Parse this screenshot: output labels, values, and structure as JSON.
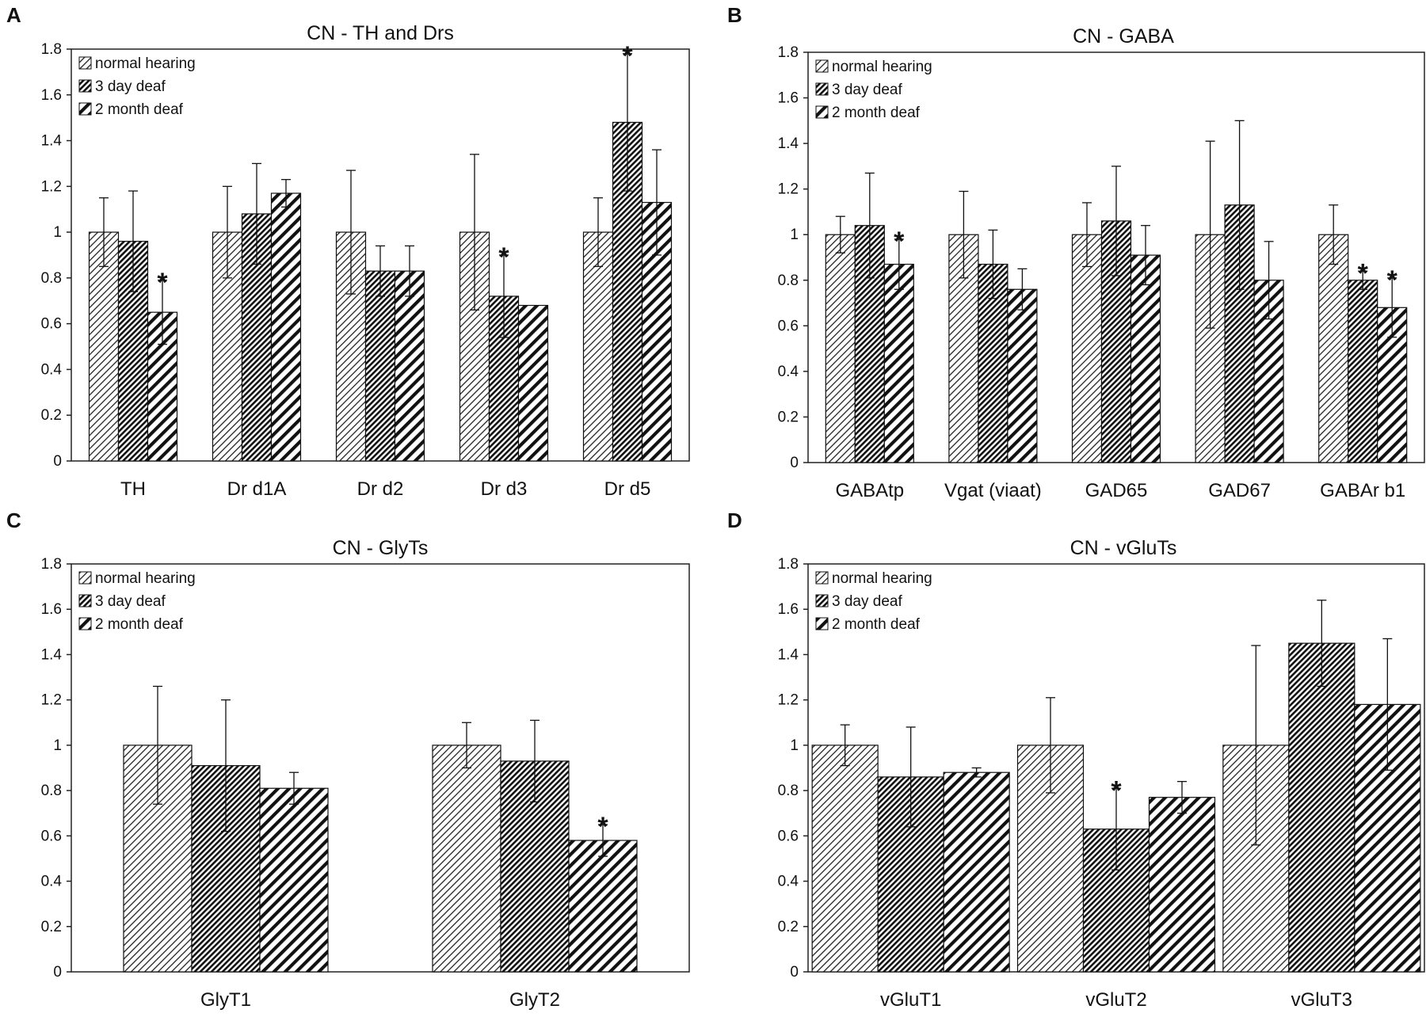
{
  "chart_data": [
    {
      "panel": "A",
      "type": "bar",
      "title": "CN - TH and Drs",
      "xlabel": "",
      "ylabel": "",
      "ylim": [
        0,
        1.8
      ],
      "yticks": [
        "0",
        "0.2",
        "0.4",
        "0.6",
        "0.8",
        "1",
        "1.2",
        "1.4",
        "1.6",
        "1.8"
      ],
      "grid": false,
      "legend_position": "top-left",
      "categories": [
        "TH",
        "Dr d1A",
        "Dr d2",
        "Dr d3",
        "Dr d5"
      ],
      "series": [
        {
          "name": "normal hearing",
          "values": [
            1.0,
            1.0,
            1.0,
            1.0,
            1.0
          ],
          "errors": [
            0.15,
            0.2,
            0.27,
            0.34,
            0.15
          ],
          "significant": [
            false,
            false,
            false,
            false,
            false
          ]
        },
        {
          "name": "3 day deaf",
          "values": [
            0.96,
            1.08,
            0.83,
            0.72,
            1.48
          ],
          "errors": [
            0.22,
            0.22,
            0.11,
            0.18,
            0.3
          ],
          "significant": [
            false,
            false,
            false,
            true,
            true
          ]
        },
        {
          "name": "2 month deaf",
          "values": [
            0.65,
            1.17,
            0.83,
            0.68,
            1.13
          ],
          "errors": [
            0.14,
            0.06,
            0.11,
            0.0,
            0.23
          ],
          "significant": [
            true,
            false,
            false,
            false,
            false
          ]
        }
      ],
      "significance_marker": "*"
    },
    {
      "panel": "B",
      "type": "bar",
      "title": "CN - GABA",
      "xlabel": "",
      "ylabel": "",
      "ylim": [
        0,
        1.8
      ],
      "yticks": [
        "0",
        "0.2",
        "0.4",
        "0.6",
        "0.8",
        "1",
        "1.2",
        "1.4",
        "1.6",
        "1.8"
      ],
      "grid": false,
      "legend_position": "top-left",
      "categories": [
        "GABAtp",
        "Vgat (viaat)",
        "GAD65",
        "GAD67",
        "GABAr b1"
      ],
      "series": [
        {
          "name": "normal hearing",
          "values": [
            1.0,
            1.0,
            1.0,
            1.0,
            1.0
          ],
          "errors": [
            0.08,
            0.19,
            0.14,
            0.41,
            0.13
          ],
          "significant": [
            false,
            false,
            false,
            false,
            false
          ]
        },
        {
          "name": "3 day deaf",
          "values": [
            1.04,
            0.87,
            1.06,
            1.13,
            0.8
          ],
          "errors": [
            0.23,
            0.15,
            0.24,
            0.37,
            0.04
          ],
          "significant": [
            false,
            false,
            false,
            false,
            true
          ]
        },
        {
          "name": "2 month deaf",
          "values": [
            0.87,
            0.76,
            0.91,
            0.8,
            0.68
          ],
          "errors": [
            0.11,
            0.09,
            0.13,
            0.17,
            0.13
          ],
          "significant": [
            true,
            false,
            false,
            false,
            true
          ]
        }
      ],
      "significance_marker": "*"
    },
    {
      "panel": "C",
      "type": "bar",
      "title": "CN - GlyTs",
      "xlabel": "",
      "ylabel": "",
      "ylim": [
        0,
        1.8
      ],
      "yticks": [
        "0",
        "0.2",
        "0.4",
        "0.6",
        "0.8",
        "1",
        "1.2",
        "1.4",
        "1.6",
        "1.8"
      ],
      "grid": false,
      "legend_position": "top-left",
      "categories": [
        "GlyT1",
        "GlyT2"
      ],
      "series": [
        {
          "name": "normal hearing",
          "values": [
            1.0,
            1.0
          ],
          "errors": [
            0.26,
            0.1
          ],
          "significant": [
            false,
            false
          ]
        },
        {
          "name": "3 day deaf",
          "values": [
            0.91,
            0.93
          ],
          "errors": [
            0.29,
            0.18
          ],
          "significant": [
            false,
            false
          ]
        },
        {
          "name": "2 month deaf",
          "values": [
            0.81,
            0.58
          ],
          "errors": [
            0.07,
            0.07
          ],
          "significant": [
            false,
            true
          ]
        }
      ],
      "significance_marker": "*"
    },
    {
      "panel": "D",
      "type": "bar",
      "title": "CN - vGluTs",
      "xlabel": "",
      "ylabel": "",
      "ylim": [
        0,
        1.8
      ],
      "yticks": [
        "0",
        "0.2",
        "0.4",
        "0.6",
        "0.8",
        "1",
        "1.2",
        "1.4",
        "1.6",
        "1.8"
      ],
      "grid": false,
      "legend_position": "top-left",
      "categories": [
        "vGluT1",
        "vGluT2",
        "vGluT3"
      ],
      "series": [
        {
          "name": "normal hearing",
          "values": [
            1.0,
            1.0,
            1.0
          ],
          "errors": [
            0.09,
            0.21,
            0.44
          ],
          "significant": [
            false,
            false,
            false
          ]
        },
        {
          "name": "3 day deaf",
          "values": [
            0.86,
            0.63,
            1.45
          ],
          "errors": [
            0.22,
            0.18,
            0.19
          ],
          "significant": [
            false,
            true,
            false
          ]
        },
        {
          "name": "2 month deaf",
          "values": [
            0.88,
            0.77,
            1.18
          ],
          "errors": [
            0.02,
            0.07,
            0.29
          ],
          "significant": [
            false,
            false,
            false
          ]
        }
      ],
      "significance_marker": "*"
    }
  ]
}
